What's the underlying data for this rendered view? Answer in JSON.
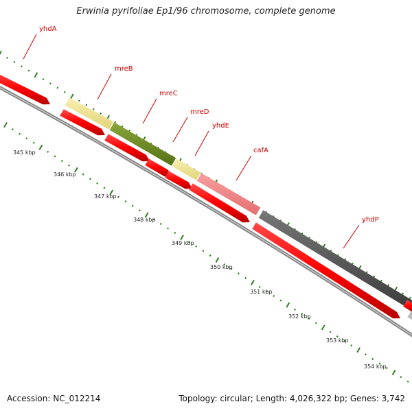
{
  "title": "Erwinia pyrifoliae Ep1/96 chromosome, complete genome",
  "footer": {
    "accession": "Accession: NC_012214",
    "topology": "Topology: circular; Length: 4,026,322 bp; Genes: 3,742"
  },
  "colors": {
    "gene_red": "#ff0000",
    "label_red": "#cc0000",
    "pale_yellow": "#eee38e",
    "olive_green": "#6b8a22",
    "salmon": "#ef8080",
    "dark_gray": "#555555",
    "tick_green": "#2e7d1f",
    "backbone_gray": "#888888"
  },
  "scale_labels": [
    "345 kbp",
    "346 kbp",
    "347 kbp",
    "348 kbp",
    "349 kbp",
    "350 kbp",
    "351 kbp",
    "352 kbp",
    "353 kbp",
    "354 kbp"
  ],
  "gene_labels": [
    "yhdA",
    "mreB",
    "mreC",
    "mreD",
    "yhdE",
    "cafA",
    "yhdP"
  ]
}
